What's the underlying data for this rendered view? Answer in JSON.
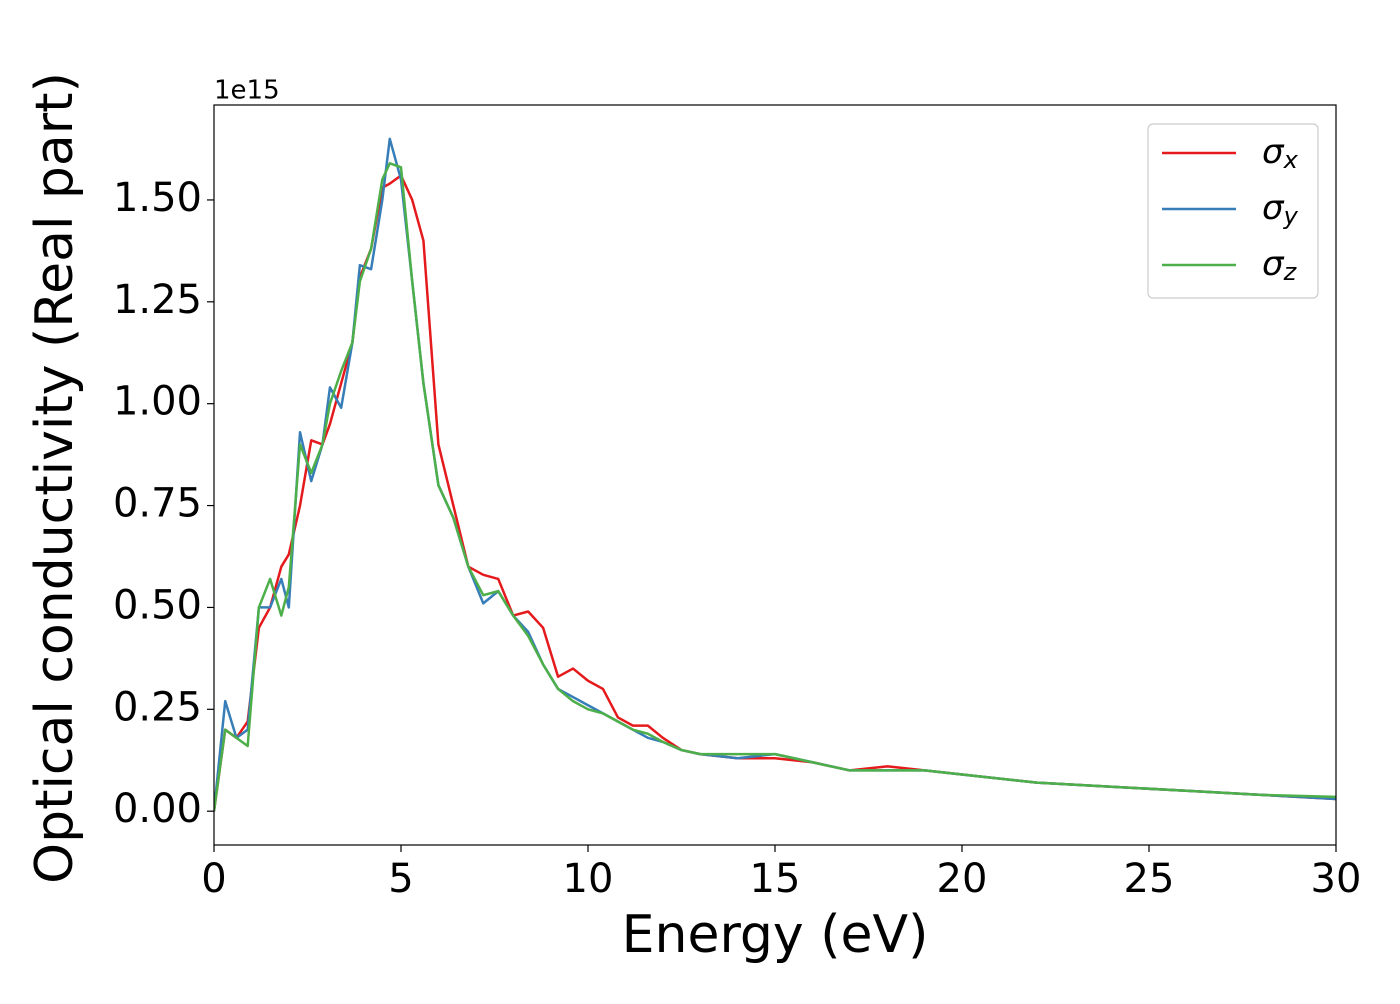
{
  "chart_data": {
    "type": "line",
    "x_label": "Energy (eV)",
    "y_label": "Optical conductivity (Real part)",
    "y_offset_label": "1e15",
    "x": [
      0,
      0.3,
      0.6,
      0.9,
      1.2,
      1.5,
      1.8,
      2.0,
      2.3,
      2.6,
      2.9,
      3.1,
      3.4,
      3.7,
      3.9,
      4.2,
      4.5,
      4.7,
      5.0,
      5.3,
      5.6,
      6.0,
      6.4,
      6.8,
      7.2,
      7.6,
      8.0,
      8.4,
      8.8,
      9.2,
      9.6,
      10.0,
      10.4,
      10.8,
      11.2,
      11.6,
      12.0,
      12.5,
      13,
      14,
      15,
      16,
      17,
      18,
      19,
      20,
      22,
      24,
      26,
      28,
      30
    ],
    "series": [
      {
        "name": "σx",
        "color": "#e41a1c",
        "values": [
          0.0,
          0.2,
          0.18,
          0.22,
          0.45,
          0.5,
          0.6,
          0.63,
          0.75,
          0.91,
          0.9,
          0.95,
          1.05,
          1.15,
          1.31,
          1.38,
          1.53,
          1.54,
          1.56,
          1.5,
          1.4,
          0.9,
          0.75,
          0.6,
          0.58,
          0.57,
          0.48,
          0.49,
          0.45,
          0.33,
          0.35,
          0.32,
          0.3,
          0.23,
          0.21,
          0.21,
          0.18,
          0.15,
          0.14,
          0.13,
          0.13,
          0.12,
          0.1,
          0.11,
          0.1,
          0.09,
          0.07,
          0.06,
          0.05,
          0.04,
          0.03
        ]
      },
      {
        "name": "σy",
        "color": "#377eb8",
        "values": [
          0.0,
          0.27,
          0.18,
          0.2,
          0.5,
          0.5,
          0.57,
          0.5,
          0.93,
          0.81,
          0.9,
          1.04,
          0.99,
          1.15,
          1.34,
          1.33,
          1.5,
          1.65,
          1.55,
          1.3,
          1.05,
          0.8,
          0.72,
          0.6,
          0.51,
          0.54,
          0.48,
          0.44,
          0.36,
          0.3,
          0.28,
          0.26,
          0.24,
          0.22,
          0.2,
          0.18,
          0.17,
          0.15,
          0.14,
          0.13,
          0.14,
          0.12,
          0.1,
          0.1,
          0.1,
          0.09,
          0.07,
          0.06,
          0.05,
          0.04,
          0.03
        ]
      },
      {
        "name": "σz",
        "color": "#4daf4a",
        "values": [
          0.0,
          0.2,
          0.18,
          0.16,
          0.5,
          0.57,
          0.48,
          0.55,
          0.9,
          0.83,
          0.9,
          1.0,
          1.08,
          1.15,
          1.3,
          1.38,
          1.55,
          1.59,
          1.58,
          1.3,
          1.05,
          0.8,
          0.72,
          0.6,
          0.53,
          0.54,
          0.48,
          0.43,
          0.36,
          0.3,
          0.27,
          0.25,
          0.24,
          0.22,
          0.2,
          0.19,
          0.17,
          0.15,
          0.14,
          0.14,
          0.14,
          0.12,
          0.1,
          0.1,
          0.1,
          0.09,
          0.07,
          0.06,
          0.05,
          0.04,
          0.035
        ]
      }
    ],
    "xlim": [
      0,
      30
    ],
    "xticks": [
      0,
      5,
      10,
      15,
      20,
      25,
      30
    ],
    "ylim": [
      -0.083,
      1.733
    ],
    "yticks": [
      {
        "value": 0,
        "label": "0.00"
      },
      {
        "value": 0.25,
        "label": "0.25"
      },
      {
        "value": 0.5,
        "label": "0.50"
      },
      {
        "value": 0.75,
        "label": "0.75"
      },
      {
        "value": 1,
        "label": "1.00"
      },
      {
        "value": 1.25,
        "label": "1.25"
      },
      {
        "value": 1.5,
        "label": "1.50"
      }
    ],
    "legend": "upper right",
    "grid": false
  }
}
